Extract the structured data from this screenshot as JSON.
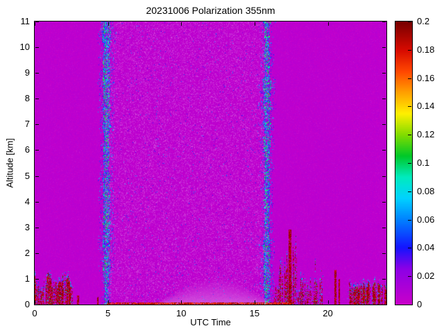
{
  "chart_data": {
    "type": "heatmap",
    "title": "20231006 Polarization 355nm",
    "xlabel": "UTC Time",
    "ylabel": "Altitude [km]",
    "x_range": [
      0,
      24
    ],
    "x_tick_labels": [
      "0",
      "5",
      "10",
      "15",
      "20"
    ],
    "x_tick_values": [
      0,
      5,
      10,
      15,
      20
    ],
    "y_range": [
      0,
      11
    ],
    "y_tick_labels": [
      "0",
      "1",
      "2",
      "3",
      "4",
      "5",
      "6",
      "7",
      "8",
      "9",
      "10",
      "11"
    ],
    "y_tick_values": [
      0,
      1,
      2,
      3,
      4,
      5,
      6,
      7,
      8,
      9,
      10,
      11
    ],
    "colorbar": {
      "range": [
        0,
        0.2
      ],
      "tick_labels": [
        "0",
        "0.02",
        "0.04",
        "0.06",
        "0.08",
        "0.1",
        "0.12",
        "0.14",
        "0.16",
        "0.18",
        "0.2"
      ],
      "tick_values": [
        0,
        0.02,
        0.04,
        0.06,
        0.08,
        0.1,
        0.12,
        0.14,
        0.16,
        0.18,
        0.2
      ]
    },
    "colormap": [
      [
        0.0,
        [
          201,
          0,
          201
        ]
      ],
      [
        0.025,
        [
          140,
          0,
          230
        ]
      ],
      [
        0.04,
        [
          20,
          20,
          255
        ]
      ],
      [
        0.06,
        [
          0,
          130,
          255
        ]
      ],
      [
        0.075,
        [
          0,
          210,
          255
        ]
      ],
      [
        0.09,
        [
          0,
          235,
          190
        ]
      ],
      [
        0.105,
        [
          0,
          200,
          40
        ]
      ],
      [
        0.12,
        [
          130,
          220,
          0
        ]
      ],
      [
        0.135,
        [
          255,
          240,
          0
        ]
      ],
      [
        0.15,
        [
          255,
          160,
          0
        ]
      ],
      [
        0.165,
        [
          255,
          70,
          0
        ]
      ],
      [
        0.18,
        [
          215,
          10,
          0
        ]
      ],
      [
        0.2,
        [
          120,
          0,
          0
        ]
      ]
    ],
    "background_value": 0.002,
    "features": {
      "noise_band": {
        "t0": 4.85,
        "t1": 15.9,
        "speckle_prob": 0.3,
        "color_speck_prob": 0.012
      },
      "band_edges": [
        {
          "t": 4.9,
          "width": 0.22
        },
        {
          "t": 15.85,
          "width": 0.22
        }
      ],
      "haze": {
        "t0": 8.2,
        "t1": 16.4,
        "h": 1.05
      },
      "clutter": [
        {
          "t0": 0.0,
          "t1": 2.6,
          "hmin": 0.25,
          "hmax": 1.45,
          "freq": 4,
          "seed": 11,
          "density": 0.85,
          "pow": 1.2,
          "streak": 25
        },
        {
          "t0": 16.35,
          "t1": 19.7,
          "hmin": 0.15,
          "hmax": 4.3,
          "freq": 5,
          "seed": 29,
          "density": 0.6,
          "pow": 2.0,
          "streak": 30
        },
        {
          "t0": 21.35,
          "t1": 24.0,
          "hmin": 0.55,
          "hmax": 0.95,
          "freq": 9,
          "seed": 43,
          "density": 0.85,
          "pow": 1.0,
          "streak": 18
        }
      ],
      "spikes": [
        {
          "t": 2.95,
          "w": 0.07,
          "h": 0.35
        },
        {
          "t": 4.3,
          "w": 0.06,
          "h": 0.3
        },
        {
          "t": 17.42,
          "w": 0.08,
          "h": 2.9
        },
        {
          "t": 20.5,
          "w": 0.07,
          "h": 1.35
        },
        {
          "t": 20.78,
          "w": 0.05,
          "h": 1.0
        }
      ],
      "bottom_strip": {
        "t0": 4.9,
        "t1": 17.6,
        "h": 0.08
      }
    }
  }
}
